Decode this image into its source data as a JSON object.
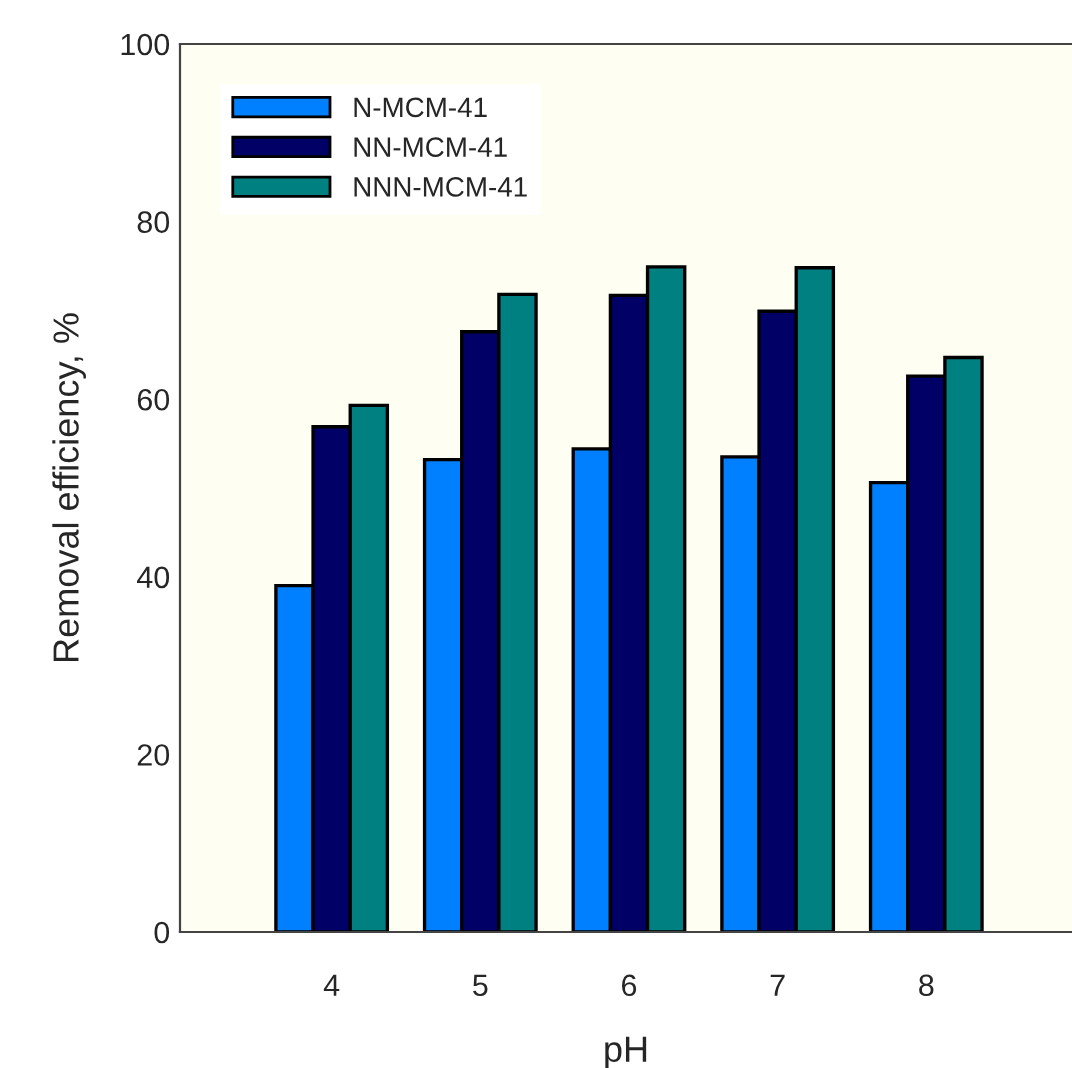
{
  "chart_data": {
    "type": "bar",
    "xlabel": "pH",
    "ylabel": "Removal efficiency, %",
    "categories": [
      "4",
      "5",
      "6",
      "7",
      "8"
    ],
    "series": [
      {
        "name": "N-MCM-41",
        "color": "#0080ff",
        "values": [
          39.0,
          53.2,
          54.4,
          53.5,
          50.6
        ]
      },
      {
        "name": "NN-MCM-41",
        "color": "#000066",
        "values": [
          56.9,
          67.6,
          71.7,
          69.9,
          62.6
        ]
      },
      {
        "name": "NNN-MCM-41",
        "color": "#008080",
        "values": [
          59.3,
          71.8,
          74.9,
          74.8,
          64.7
        ]
      }
    ],
    "ylim": [
      0,
      100
    ],
    "yticks": [
      0,
      20,
      40,
      60,
      80,
      100
    ],
    "grid": false,
    "legend": "top left"
  }
}
